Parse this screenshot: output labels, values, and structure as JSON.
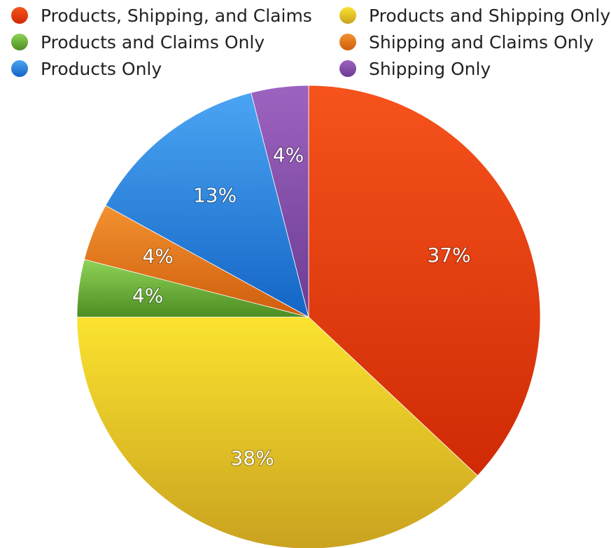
{
  "chart_data": {
    "type": "pie",
    "title": "",
    "legend_position": "top",
    "start_angle": "12 o'clock, clockwise",
    "slices": [
      {
        "label": "Products, Shipping, and Claims",
        "value": 37,
        "display": "37%",
        "color": "#e0360f",
        "color_light": "#f6531c",
        "color_dark": "#cf2a05"
      },
      {
        "label": "Products and Shipping Only",
        "value": 38,
        "display": "38%",
        "color": "#e5c22a",
        "color_light": "#fbe32f",
        "color_dark": "#c9a21f"
      },
      {
        "label": "Products and Claims Only",
        "value": 4,
        "display": "4%",
        "color": "#6fb83a",
        "color_light": "#8fd357",
        "color_dark": "#4c8d22"
      },
      {
        "label": "Shipping and Claims Only",
        "value": 4,
        "display": "4%",
        "color": "#e6781a",
        "color_light": "#f29230",
        "color_dark": "#cf5d0d"
      },
      {
        "label": "Products Only",
        "value": 13,
        "display": "13%",
        "color": "#2e86e0",
        "color_light": "#4ba5f3",
        "color_dark": "#1465c5"
      },
      {
        "label": "Shipping Only",
        "value": 4,
        "display": "4%",
        "color": "#8b52b0",
        "color_light": "#9d63c0",
        "color_dark": "#6b3c93"
      }
    ],
    "legend_order": [
      0,
      1,
      2,
      3,
      4,
      5
    ]
  }
}
